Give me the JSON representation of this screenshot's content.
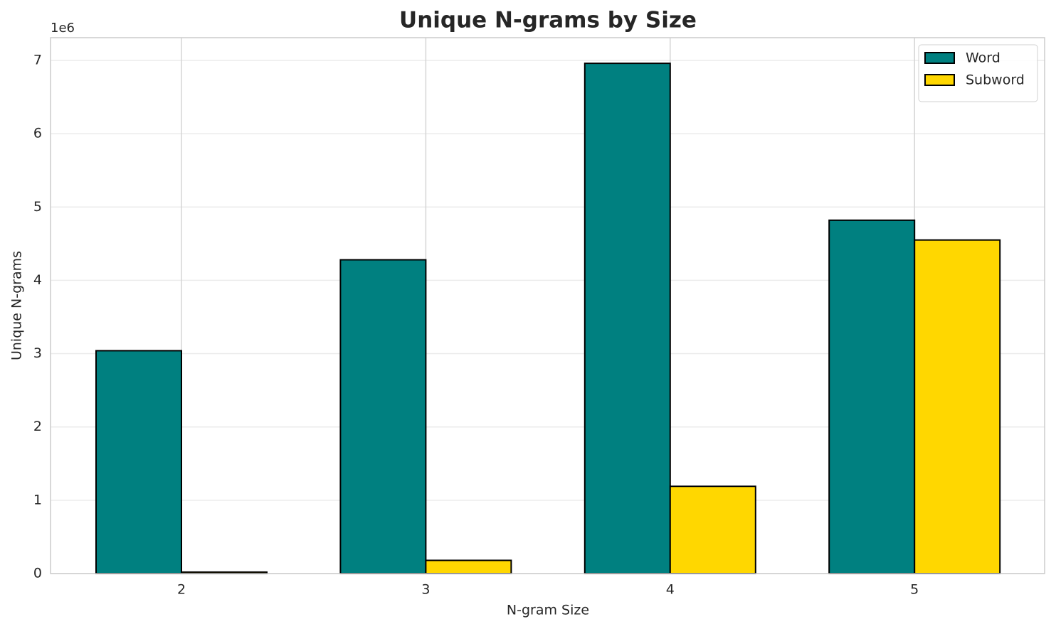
{
  "chart_data": {
    "type": "bar",
    "title": "Unique N-grams by Size",
    "x_label": "N-gram Size",
    "y_label": "Unique N-grams",
    "y_offset_label": "1e6",
    "categories": [
      "2",
      "3",
      "4",
      "5"
    ],
    "series": [
      {
        "name": "Word",
        "color": "#008080",
        "values": [
          3.04,
          4.28,
          6.96,
          4.82
        ]
      },
      {
        "name": "Subword",
        "color": "#ffd700",
        "values": [
          0.02,
          0.18,
          1.19,
          4.55
        ]
      }
    ],
    "ylim": [
      0,
      7.31
    ],
    "yticks": [
      0,
      1,
      2,
      3,
      4,
      5,
      6,
      7
    ],
    "grid": true,
    "legend": "upper right"
  }
}
